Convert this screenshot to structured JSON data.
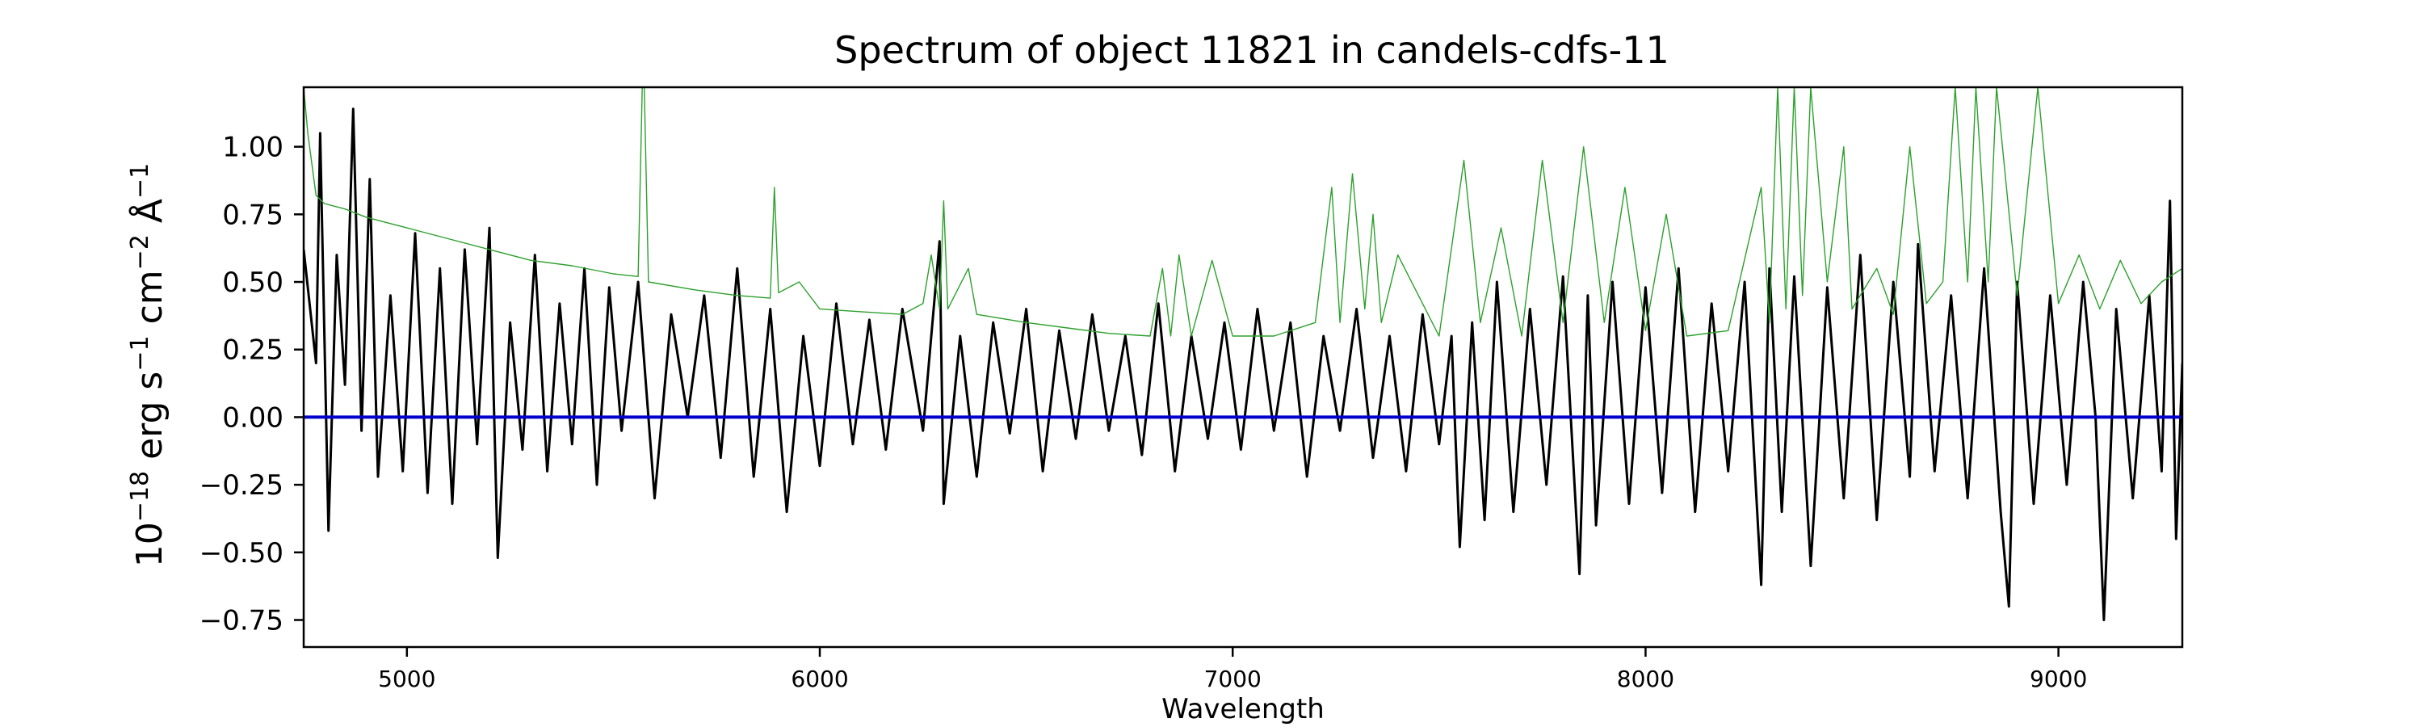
{
  "chart_data": {
    "type": "line",
    "title": "Spectrum of object 11821 in candels-cdfs-11",
    "xlabel": "Wavelength",
    "ylabel": {
      "prefix": "10",
      "prefix_sup": "−18",
      "unit1": " erg s",
      "unit1_sup": "−1",
      "unit2": " cm",
      "unit2_sup": "−2",
      "unit3": " Å",
      "unit3_sup": "−1"
    },
    "xlim": [
      4750,
      9300
    ],
    "ylim": [
      -0.85,
      1.22
    ],
    "x_ticks": [
      5000,
      6000,
      7000,
      8000,
      9000
    ],
    "x_tick_labels": [
      "5000",
      "6000",
      "7000",
      "8000",
      "9000"
    ],
    "y_ticks": [
      1.0,
      0.75,
      0.5,
      0.25,
      0.0,
      -0.25,
      -0.5,
      -0.75
    ],
    "y_tick_labels": [
      "1.00",
      "0.75",
      "0.50",
      "0.25",
      "0.00",
      "−0.25",
      "−0.50",
      "−0.75"
    ],
    "grid": false,
    "series": [
      {
        "color": "#000000",
        "line_width": 3,
        "points": [
          [
            4750,
            0.62
          ],
          [
            4780,
            0.2
          ],
          [
            4790,
            1.05
          ],
          [
            4810,
            -0.42
          ],
          [
            4830,
            0.6
          ],
          [
            4850,
            0.12
          ],
          [
            4870,
            1.14
          ],
          [
            4890,
            -0.05
          ],
          [
            4910,
            0.88
          ],
          [
            4930,
            -0.22
          ],
          [
            4960,
            0.45
          ],
          [
            4990,
            -0.2
          ],
          [
            5020,
            0.68
          ],
          [
            5050,
            -0.28
          ],
          [
            5080,
            0.55
          ],
          [
            5110,
            -0.32
          ],
          [
            5140,
            0.62
          ],
          [
            5170,
            -0.1
          ],
          [
            5200,
            0.7
          ],
          [
            5220,
            -0.52
          ],
          [
            5250,
            0.35
          ],
          [
            5280,
            -0.12
          ],
          [
            5310,
            0.6
          ],
          [
            5340,
            -0.2
          ],
          [
            5370,
            0.42
          ],
          [
            5400,
            -0.1
          ],
          [
            5430,
            0.55
          ],
          [
            5460,
            -0.25
          ],
          [
            5490,
            0.48
          ],
          [
            5520,
            -0.05
          ],
          [
            5560,
            0.5
          ],
          [
            5600,
            -0.3
          ],
          [
            5640,
            0.38
          ],
          [
            5680,
            0.0
          ],
          [
            5720,
            0.45
          ],
          [
            5760,
            -0.15
          ],
          [
            5800,
            0.55
          ],
          [
            5840,
            -0.22
          ],
          [
            5880,
            0.4
          ],
          [
            5920,
            -0.35
          ],
          [
            5960,
            0.3
          ],
          [
            6000,
            -0.18
          ],
          [
            6040,
            0.42
          ],
          [
            6080,
            -0.1
          ],
          [
            6120,
            0.36
          ],
          [
            6160,
            -0.12
          ],
          [
            6200,
            0.4
          ],
          [
            6250,
            -0.05
          ],
          [
            6290,
            0.65
          ],
          [
            6300,
            -0.32
          ],
          [
            6340,
            0.3
          ],
          [
            6380,
            -0.22
          ],
          [
            6420,
            0.35
          ],
          [
            6460,
            -0.06
          ],
          [
            6500,
            0.4
          ],
          [
            6540,
            -0.2
          ],
          [
            6580,
            0.32
          ],
          [
            6620,
            -0.08
          ],
          [
            6660,
            0.38
          ],
          [
            6700,
            -0.05
          ],
          [
            6740,
            0.3
          ],
          [
            6780,
            -0.14
          ],
          [
            6820,
            0.42
          ],
          [
            6860,
            -0.2
          ],
          [
            6900,
            0.3
          ],
          [
            6940,
            -0.08
          ],
          [
            6980,
            0.35
          ],
          [
            7020,
            -0.12
          ],
          [
            7060,
            0.4
          ],
          [
            7100,
            -0.05
          ],
          [
            7140,
            0.35
          ],
          [
            7180,
            -0.22
          ],
          [
            7220,
            0.3
          ],
          [
            7260,
            -0.05
          ],
          [
            7300,
            0.4
          ],
          [
            7340,
            -0.15
          ],
          [
            7380,
            0.3
          ],
          [
            7420,
            -0.2
          ],
          [
            7460,
            0.38
          ],
          [
            7500,
            -0.1
          ],
          [
            7530,
            0.3
          ],
          [
            7550,
            -0.48
          ],
          [
            7580,
            0.35
          ],
          [
            7610,
            -0.38
          ],
          [
            7640,
            0.5
          ],
          [
            7680,
            -0.35
          ],
          [
            7720,
            0.4
          ],
          [
            7760,
            -0.25
          ],
          [
            7800,
            0.52
          ],
          [
            7840,
            -0.58
          ],
          [
            7860,
            0.45
          ],
          [
            7880,
            -0.4
          ],
          [
            7920,
            0.5
          ],
          [
            7960,
            -0.32
          ],
          [
            8000,
            0.48
          ],
          [
            8040,
            -0.28
          ],
          [
            8080,
            0.55
          ],
          [
            8120,
            -0.35
          ],
          [
            8160,
            0.42
          ],
          [
            8200,
            -0.2
          ],
          [
            8240,
            0.5
          ],
          [
            8280,
            -0.62
          ],
          [
            8300,
            0.55
          ],
          [
            8330,
            -0.35
          ],
          [
            8360,
            0.52
          ],
          [
            8400,
            -0.55
          ],
          [
            8440,
            0.48
          ],
          [
            8480,
            -0.3
          ],
          [
            8520,
            0.6
          ],
          [
            8560,
            -0.38
          ],
          [
            8600,
            0.5
          ],
          [
            8640,
            -0.22
          ],
          [
            8660,
            0.64
          ],
          [
            8700,
            -0.2
          ],
          [
            8740,
            0.45
          ],
          [
            8780,
            -0.3
          ],
          [
            8820,
            0.55
          ],
          [
            8860,
            -0.35
          ],
          [
            8880,
            -0.7
          ],
          [
            8900,
            0.5
          ],
          [
            8940,
            -0.32
          ],
          [
            8980,
            0.45
          ],
          [
            9020,
            -0.25
          ],
          [
            9060,
            0.5
          ],
          [
            9090,
            0.0
          ],
          [
            9110,
            -0.75
          ],
          [
            9140,
            0.4
          ],
          [
            9180,
            -0.3
          ],
          [
            9220,
            0.45
          ],
          [
            9250,
            -0.2
          ],
          [
            9270,
            0.8
          ],
          [
            9285,
            -0.45
          ],
          [
            9300,
            0.2
          ]
        ]
      },
      {
        "color": "#2ca02c",
        "line_width": 1.4,
        "points": [
          [
            4750,
            1.22
          ],
          [
            4760,
            1.05
          ],
          [
            4780,
            0.82
          ],
          [
            4800,
            0.79
          ],
          [
            4850,
            0.77
          ],
          [
            4900,
            0.74
          ],
          [
            4950,
            0.72
          ],
          [
            5000,
            0.7
          ],
          [
            5100,
            0.66
          ],
          [
            5200,
            0.62
          ],
          [
            5300,
            0.58
          ],
          [
            5400,
            0.56
          ],
          [
            5500,
            0.53
          ],
          [
            5560,
            0.52
          ],
          [
            5570,
            1.22
          ],
          [
            5575,
            1.22
          ],
          [
            5585,
            0.5
          ],
          [
            5700,
            0.47
          ],
          [
            5800,
            0.45
          ],
          [
            5880,
            0.44
          ],
          [
            5890,
            0.85
          ],
          [
            5900,
            0.46
          ],
          [
            5950,
            0.5
          ],
          [
            6000,
            0.4
          ],
          [
            6100,
            0.39
          ],
          [
            6200,
            0.38
          ],
          [
            6250,
            0.42
          ],
          [
            6270,
            0.6
          ],
          [
            6290,
            0.4
          ],
          [
            6300,
            0.8
          ],
          [
            6310,
            0.4
          ],
          [
            6360,
            0.55
          ],
          [
            6380,
            0.38
          ],
          [
            6500,
            0.35
          ],
          [
            6600,
            0.33
          ],
          [
            6700,
            0.31
          ],
          [
            6800,
            0.3
          ],
          [
            6830,
            0.55
          ],
          [
            6850,
            0.3
          ],
          [
            6870,
            0.6
          ],
          [
            6900,
            0.3
          ],
          [
            6950,
            0.58
          ],
          [
            7000,
            0.3
          ],
          [
            7100,
            0.3
          ],
          [
            7200,
            0.35
          ],
          [
            7240,
            0.85
          ],
          [
            7260,
            0.35
          ],
          [
            7290,
            0.9
          ],
          [
            7320,
            0.4
          ],
          [
            7340,
            0.75
          ],
          [
            7360,
            0.35
          ],
          [
            7400,
            0.6
          ],
          [
            7500,
            0.3
          ],
          [
            7560,
            0.95
          ],
          [
            7600,
            0.35
          ],
          [
            7650,
            0.7
          ],
          [
            7700,
            0.3
          ],
          [
            7750,
            0.95
          ],
          [
            7800,
            0.35
          ],
          [
            7850,
            1.0
          ],
          [
            7900,
            0.35
          ],
          [
            7950,
            0.85
          ],
          [
            8000,
            0.32
          ],
          [
            8050,
            0.75
          ],
          [
            8100,
            0.3
          ],
          [
            8200,
            0.32
          ],
          [
            8280,
            0.85
          ],
          [
            8300,
            0.35
          ],
          [
            8320,
            1.22
          ],
          [
            8340,
            0.4
          ],
          [
            8360,
            1.22
          ],
          [
            8380,
            0.45
          ],
          [
            8400,
            1.22
          ],
          [
            8440,
            0.5
          ],
          [
            8480,
            1.0
          ],
          [
            8500,
            0.4
          ],
          [
            8560,
            0.55
          ],
          [
            8600,
            0.38
          ],
          [
            8640,
            1.0
          ],
          [
            8680,
            0.42
          ],
          [
            8720,
            0.5
          ],
          [
            8750,
            1.22
          ],
          [
            8780,
            0.5
          ],
          [
            8800,
            1.22
          ],
          [
            8830,
            0.5
          ],
          [
            8850,
            1.22
          ],
          [
            8900,
            0.45
          ],
          [
            8950,
            1.22
          ],
          [
            9000,
            0.42
          ],
          [
            9050,
            0.6
          ],
          [
            9100,
            0.4
          ],
          [
            9150,
            0.58
          ],
          [
            9200,
            0.42
          ],
          [
            9250,
            0.5
          ],
          [
            9300,
            0.55
          ]
        ]
      },
      {
        "color": "#0000cc",
        "line_width": 4,
        "points": [
          [
            4750,
            0.0
          ],
          [
            9300,
            0.0
          ]
        ]
      }
    ]
  }
}
